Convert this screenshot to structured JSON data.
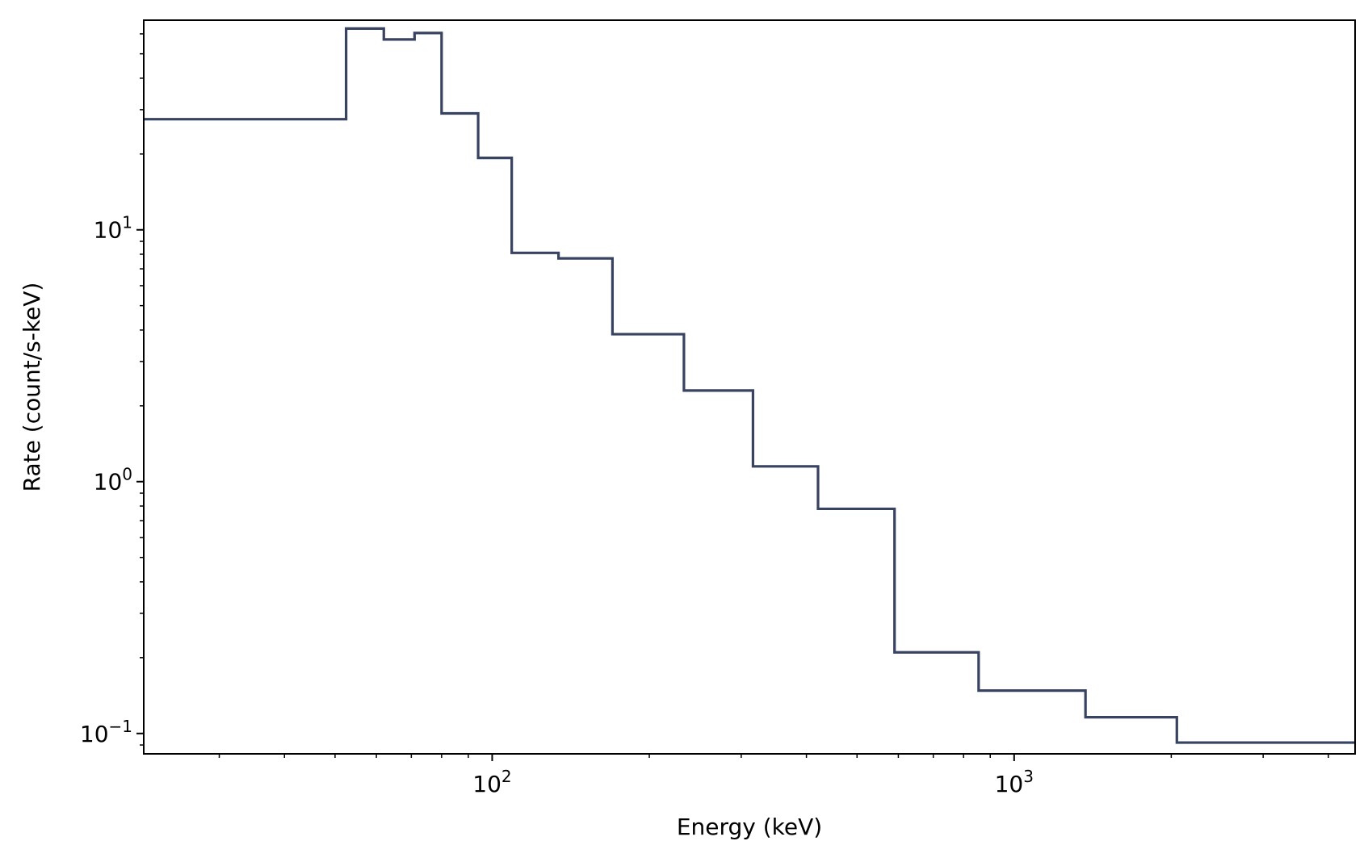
{
  "chart_data": {
    "type": "line",
    "drawstyle": "steps",
    "title": "",
    "xlabel": "Energy (keV)",
    "ylabel": "Rate (count/s-keV)",
    "xscale": "log",
    "yscale": "log",
    "xlim": [
      21.5,
      4500
    ],
    "ylim": [
      0.083,
      68
    ],
    "grid": false,
    "legend": "none",
    "line_color": "#384361",
    "x_ticks": [
      {
        "value": 100,
        "base": "10",
        "exp": "2"
      },
      {
        "value": 1000,
        "base": "10",
        "exp": "3"
      }
    ],
    "y_ticks": [
      {
        "value": 10,
        "base": "10",
        "exp": "1"
      },
      {
        "value": 1,
        "base": "10",
        "exp": "0"
      },
      {
        "value": 0.1,
        "base": "10",
        "exp": "−1"
      }
    ],
    "series": [
      {
        "bin_edges": [
          21.5,
          52.5,
          62,
          71,
          80,
          94,
          109,
          134,
          170,
          233,
          316,
          421,
          590,
          855,
          1370,
          2050,
          4500
        ],
        "values": [
          27.5,
          63,
          57,
          60.5,
          29,
          19.3,
          8.1,
          7.7,
          3.85,
          2.3,
          1.15,
          0.78,
          0.21,
          0.148,
          0.116,
          0.092
        ]
      }
    ]
  }
}
